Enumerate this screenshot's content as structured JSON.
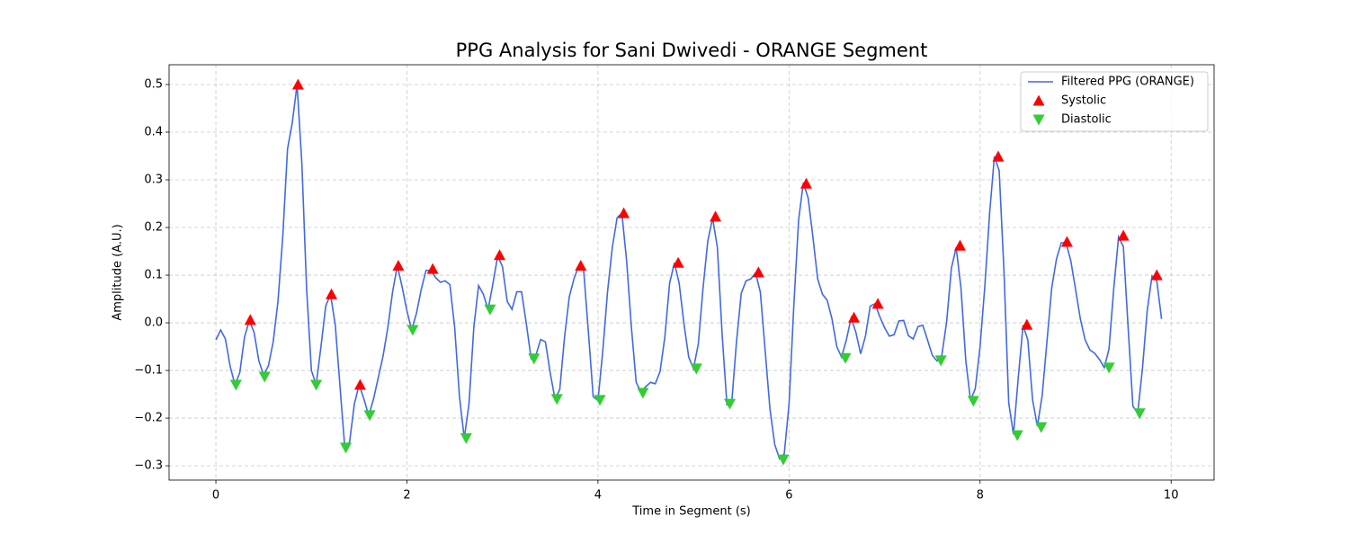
{
  "chart_data": {
    "type": "line",
    "title": "PPG Analysis for Sani Dwivedi - ORANGE Segment",
    "x_label": "Time in Segment (s)",
    "y_label": "Amplitude (A.U.)",
    "xlim": [
      -0.49,
      10.45
    ],
    "ylim": [
      -0.33,
      0.5415
    ],
    "xticks": [
      0,
      2,
      4,
      6,
      8,
      10
    ],
    "yticks": [
      {
        "value": -0.3,
        "label": "−0.3"
      },
      {
        "value": -0.2,
        "label": "−0.2"
      },
      {
        "value": -0.1,
        "label": "−0.1"
      },
      {
        "value": 0,
        "label": "0.0"
      },
      0.1,
      0.2,
      0.3,
      0.4,
      0.5
    ],
    "grid": true,
    "legend": "upper right",
    "series": [
      {
        "name": "Filtered PPG (ORANGE)",
        "color": "#4169e1",
        "type": "line",
        "x": [
          0,
          0.05,
          0.1,
          0.15,
          0.2,
          0.25,
          0.3,
          0.35,
          0.4,
          0.45,
          0.5,
          0.55,
          0.6,
          0.65,
          0.7,
          0.75,
          0.8,
          0.85,
          0.9,
          0.95,
          1,
          1.05,
          1.1,
          1.15,
          1.2,
          1.25,
          1.3,
          1.35,
          1.4,
          1.45,
          1.5,
          1.55,
          1.6,
          1.65,
          1.7,
          1.75,
          1.8,
          1.85,
          1.9,
          1.95,
          2,
          2.05,
          2.1,
          2.15,
          2.2,
          2.25,
          2.3,
          2.35,
          2.4,
          2.45,
          2.5,
          2.55,
          2.6,
          2.65,
          2.7,
          2.75,
          2.8,
          2.85,
          2.9,
          2.95,
          3,
          3.05,
          3.1,
          3.15,
          3.2,
          3.25,
          3.3,
          3.35,
          3.4,
          3.45,
          3.5,
          3.55,
          3.6,
          3.65,
          3.7,
          3.75,
          3.8,
          3.85,
          3.9,
          3.95,
          4,
          4.05,
          4.1,
          4.15,
          4.2,
          4.25,
          4.3,
          4.35,
          4.4,
          4.45,
          4.5,
          4.55,
          4.6,
          4.65,
          4.7,
          4.75,
          4.8,
          4.85,
          4.9,
          4.95,
          5,
          5.05,
          5.1,
          5.15,
          5.2,
          5.25,
          5.3,
          5.35,
          5.4,
          5.45,
          5.5,
          5.55,
          5.6,
          5.65,
          5.7,
          5.75,
          5.8,
          5.85,
          5.9,
          5.95,
          6,
          6.05,
          6.1,
          6.15,
          6.2,
          6.25,
          6.3,
          6.35,
          6.4,
          6.45,
          6.5,
          6.55,
          6.6,
          6.65,
          6.7,
          6.75,
          6.8,
          6.85,
          6.9,
          6.95,
          7,
          7.05,
          7.1,
          7.15,
          7.2,
          7.25,
          7.3,
          7.35,
          7.4,
          7.45,
          7.5,
          7.55,
          7.6,
          7.65,
          7.7,
          7.75,
          7.8,
          7.85,
          7.9,
          7.95,
          8,
          8.05,
          8.1,
          8.15,
          8.2,
          8.25,
          8.3,
          8.35,
          8.4,
          8.45,
          8.5,
          8.55,
          8.6,
          8.65,
          8.7,
          8.75,
          8.8,
          8.85,
          8.9,
          8.95,
          9,
          9.05,
          9.1,
          9.15,
          9.2,
          9.25,
          9.3,
          9.35,
          9.4,
          9.45,
          9.5,
          9.55,
          9.6,
          9.65,
          9.7,
          9.75,
          9.8,
          9.85,
          9.9
        ],
        "values": [
          -0.036,
          -0.015,
          -0.034,
          -0.092,
          -0.13,
          -0.105,
          -0.03,
          0.005,
          -0.02,
          -0.08,
          -0.11,
          -0.09,
          -0.04,
          0.045,
          0.18,
          0.365,
          0.42,
          0.5,
          0.335,
          0.07,
          -0.1,
          -0.13,
          -0.05,
          0.035,
          0.06,
          -0.005,
          -0.135,
          -0.263,
          -0.25,
          -0.17,
          -0.13,
          -0.16,
          -0.195,
          -0.16,
          -0.115,
          -0.07,
          -0.01,
          0.065,
          0.12,
          0.075,
          0.025,
          -0.015,
          0.02,
          0.07,
          0.11,
          0.11,
          0.095,
          0.085,
          0.088,
          0.08,
          -0.01,
          -0.155,
          -0.242,
          -0.17,
          -0.01,
          0.078,
          0.06,
          0.028,
          0.082,
          0.14,
          0.118,
          0.045,
          0.028,
          0.065,
          0.065,
          -0.002,
          -0.075,
          -0.068,
          -0.035,
          -0.04,
          -0.105,
          -0.16,
          -0.14,
          -0.03,
          0.055,
          0.093,
          0.12,
          0.11,
          -0.02,
          -0.155,
          -0.163,
          -0.06,
          0.065,
          0.158,
          0.22,
          0.23,
          0.13,
          -0.01,
          -0.125,
          -0.145,
          -0.134,
          -0.125,
          -0.128,
          -0.102,
          -0.03,
          0.083,
          0.126,
          0.083,
          -0.002,
          -0.072,
          -0.096,
          -0.045,
          0.073,
          0.172,
          0.22,
          0.158,
          -0.025,
          -0.172,
          -0.168,
          -0.04,
          0.062,
          0.088,
          0.092,
          0.105,
          0.064,
          -0.058,
          -0.18,
          -0.255,
          -0.285,
          -0.275,
          -0.172,
          0.035,
          0.215,
          0.294,
          0.262,
          0.18,
          0.092,
          0.06,
          0.047,
          0.008,
          -0.05,
          -0.072,
          -0.036,
          0.01,
          -0.02,
          -0.065,
          -0.028,
          0.035,
          0.04,
          0.013,
          -0.01,
          -0.028,
          -0.025,
          0.004,
          0.005,
          -0.027,
          -0.034,
          -0.008,
          -0.005,
          -0.036,
          -0.068,
          -0.08,
          -0.068,
          0.002,
          0.115,
          0.158,
          0.073,
          -0.078,
          -0.163,
          -0.138,
          -0.05,
          0.077,
          0.23,
          0.349,
          0.319,
          0.11,
          -0.168,
          -0.234,
          -0.115,
          -0.005,
          -0.036,
          -0.162,
          -0.217,
          -0.153,
          -0.04,
          0.073,
          0.134,
          0.168,
          0.168,
          0.13,
          0.07,
          0.008,
          -0.036,
          -0.057,
          -0.064,
          -0.077,
          -0.094,
          -0.055,
          0.073,
          0.18,
          0.16,
          -0.01,
          -0.175,
          -0.19,
          -0.096,
          0.026,
          0.098,
          0.088,
          0.008
        ]
      },
      {
        "name": "Systolic",
        "color": "#ff0000",
        "type": "scatter",
        "marker": "triangle-up",
        "x": [
          0.36,
          0.86,
          1.21,
          1.51,
          1.91,
          2.27,
          2.97,
          3.82,
          4.27,
          4.84,
          5.23,
          5.68,
          6.18,
          6.68,
          6.93,
          7.79,
          8.19,
          8.49,
          8.91,
          9.5,
          9.85
        ],
        "values": [
          0.006,
          0.5,
          0.06,
          -0.13,
          0.12,
          0.113,
          0.142,
          0.12,
          0.23,
          0.126,
          0.223,
          0.106,
          0.292,
          0.011,
          0.04,
          0.162,
          0.349,
          -0.004,
          0.17,
          0.183,
          0.1
        ]
      },
      {
        "name": "Diastolic",
        "color": "#32cd32",
        "type": "scatter",
        "marker": "triangle-down",
        "x": [
          0.21,
          0.51,
          1.05,
          1.36,
          1.61,
          2.06,
          2.62,
          2.87,
          3.33,
          3.57,
          4.02,
          4.47,
          5.03,
          5.38,
          5.94,
          6.59,
          7.59,
          7.93,
          8.39,
          8.64,
          9.35,
          9.67
        ],
        "values": [
          -0.13,
          -0.113,
          -0.13,
          -0.262,
          -0.194,
          -0.015,
          -0.242,
          0.028,
          -0.075,
          -0.16,
          -0.162,
          -0.147,
          -0.096,
          -0.17,
          -0.287,
          -0.074,
          -0.079,
          -0.164,
          -0.236,
          -0.219,
          -0.094,
          -0.19
        ]
      }
    ]
  }
}
